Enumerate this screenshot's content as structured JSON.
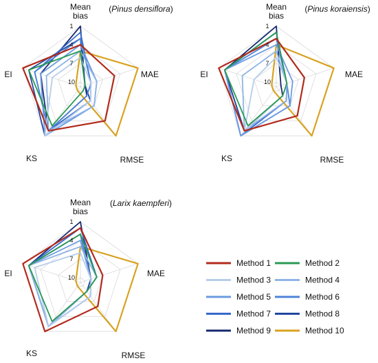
{
  "chart_data": {
    "type": "radar",
    "axes": [
      "Mean\nbias",
      "MAE",
      "RMSE",
      "KS",
      "EI"
    ],
    "scale": {
      "ticks": [
        1,
        4,
        7,
        10
      ],
      "range": [
        1,
        10
      ],
      "reversed": true
    },
    "legend": {
      "placement": "bottom-right",
      "entries": [
        {
          "name": "Method 1",
          "color": "#b22a1c"
        },
        {
          "name": "Method 2",
          "color": "#2a9a54"
        },
        {
          "name": "Method 3",
          "color": "#b6cdea"
        },
        {
          "name": "Method 4",
          "color": "#8fb4e6"
        },
        {
          "name": "Method 5",
          "color": "#6c9be0"
        },
        {
          "name": "Method 6",
          "color": "#4d83d8"
        },
        {
          "name": "Method 7",
          "color": "#3669cc"
        },
        {
          "name": "Method 8",
          "color": "#22479f"
        },
        {
          "name": "Method 9",
          "color": "#16296e"
        },
        {
          "name": "Method 10",
          "color": "#d8a21f"
        }
      ]
    },
    "charts": [
      {
        "title_pre": "(",
        "title": "Pinus densiflora",
        "title_post": ")",
        "series": [
          {
            "name": "Method 1",
            "values": [
              4,
              5,
              4,
              2,
              1
            ]
          },
          {
            "name": "Method 2",
            "values": [
              5,
              10,
              10,
              3,
              2
            ]
          },
          {
            "name": "Method 3",
            "values": [
              6,
              9,
              8,
              1,
              6
            ]
          },
          {
            "name": "Method 4",
            "values": [
              5,
              8,
              7,
              2,
              5
            ]
          },
          {
            "name": "Method 5",
            "values": [
              4,
              8,
              7,
              1,
              4
            ]
          },
          {
            "name": "Method 6",
            "values": [
              3,
              9,
              9,
              2,
              3
            ]
          },
          {
            "name": "Method 7",
            "values": [
              2,
              9,
              8,
              2,
              3
            ]
          },
          {
            "name": "Method 8",
            "values": [
              3,
              10,
              8,
              1,
              2
            ]
          },
          {
            "name": "Method 9",
            "values": [
              1,
              10,
              9,
              2,
              4
            ]
          },
          {
            "name": "Method 10",
            "values": [
              5,
              1,
              1,
              10,
              10
            ]
          }
        ]
      },
      {
        "title_pre": "(",
        "title": "Pinus koraiensis",
        "title_post": ")",
        "series": [
          {
            "name": "Method 1",
            "values": [
              3,
              6,
              5,
              2,
              1
            ]
          },
          {
            "name": "Method 2",
            "values": [
              2,
              9,
              9,
              3,
              2
            ]
          },
          {
            "name": "Method 3",
            "values": [
              6,
              9,
              9,
              2,
              7
            ]
          },
          {
            "name": "Method 4",
            "values": [
              5,
              9,
              8,
              2,
              5
            ]
          },
          {
            "name": "Method 5",
            "values": [
              4,
              8,
              7,
              1,
              2
            ]
          },
          {
            "name": "Method 6",
            "values": [
              3,
              9,
              7,
              1,
              2
            ]
          },
          {
            "name": "Method 7",
            "values": [
              2,
              9,
              8,
              1,
              2
            ]
          },
          {
            "name": "Method 8",
            "values": [
              2,
              9,
              8,
              2,
              2
            ]
          },
          {
            "name": "Method 9",
            "values": [
              1,
              10,
              9,
              2,
              2
            ]
          },
          {
            "name": "Method 10",
            "values": [
              4,
              1,
              1,
              10,
              10
            ]
          }
        ]
      },
      {
        "title_pre": "(",
        "title": "Larix kaempferi",
        "title_post": ")",
        "series": [
          {
            "name": "Method 1",
            "values": [
              2,
              7,
              6,
              1,
              1
            ]
          },
          {
            "name": "Method 2",
            "values": [
              3,
              8,
              9,
              3,
              2
            ]
          },
          {
            "name": "Method 3",
            "values": [
              6,
              9,
              8,
              2,
              3
            ]
          },
          {
            "name": "Method 4",
            "values": [
              5,
              8,
              9,
              2,
              2
            ]
          },
          {
            "name": "Method 5",
            "values": [
              4,
              9,
              8,
              2,
              2
            ]
          },
          {
            "name": "Method 6",
            "values": [
              3,
              9,
              8,
              2,
              2
            ]
          },
          {
            "name": "Method 7",
            "values": [
              2,
              8,
              9,
              2,
              2
            ]
          },
          {
            "name": "Method 8",
            "values": [
              3,
              9,
              9,
              2,
              2
            ]
          },
          {
            "name": "Method 9",
            "values": [
              1,
              9,
              9,
              2,
              2
            ]
          },
          {
            "name": "Method 10",
            "values": [
              5,
              1,
              1,
              10,
              10
            ]
          }
        ]
      }
    ]
  }
}
